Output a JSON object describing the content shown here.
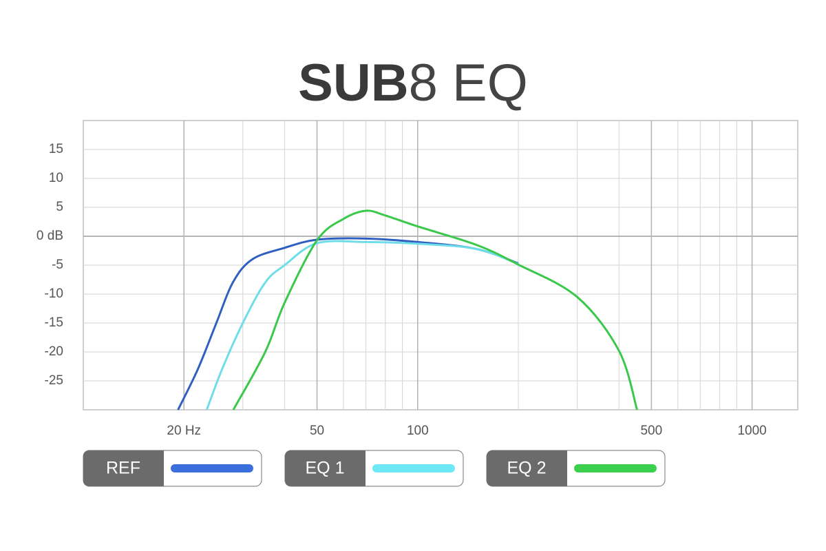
{
  "chart_data": {
    "type": "line",
    "title": [
      "SUB",
      "8 EQ"
    ],
    "xscale": "log",
    "xlim": [
      10,
      1370
    ],
    "ylim": [
      -30,
      20
    ],
    "xticks": [
      {
        "value": 20,
        "label": "20 Hz"
      },
      50,
      100,
      500,
      1000
    ],
    "xminor": [
      30,
      40,
      60,
      70,
      80,
      90,
      200,
      300,
      400,
      600,
      700,
      800,
      900
    ],
    "yticks": [
      15,
      10,
      5,
      {
        "value": 0,
        "label": "0 dB"
      },
      -5,
      -10,
      -15,
      -20,
      -25
    ],
    "grid": true,
    "series": [
      {
        "name": "REF",
        "color": "#2f5fc0",
        "legend_color": "#3a6fdc",
        "x": [
          19.2,
          22,
          25,
          28,
          32,
          40,
          50,
          70,
          100,
          150,
          200
        ],
        "values": [
          -30,
          -23,
          -15,
          -8,
          -4,
          -2,
          -0.6,
          -0.4,
          -1,
          -2.2,
          -4.7
        ]
      },
      {
        "name": "EQ 1",
        "color": "#6fdde8",
        "legend_color": "#6ee7f7",
        "x": [
          23.4,
          26,
          30,
          35,
          40,
          50,
          70,
          100,
          150,
          200
        ],
        "values": [
          -30,
          -23,
          -15,
          -8,
          -5,
          -1.2,
          -1,
          -1.3,
          -2.2,
          -4.8
        ]
      },
      {
        "name": "EQ 2",
        "color": "#3ac84a",
        "legend_color": "#3ccf4e",
        "x": [
          28.1,
          35,
          40,
          50,
          60,
          70,
          80,
          100,
          150,
          200,
          300,
          400,
          453
        ],
        "values": [
          -30,
          -20,
          -11.5,
          -0.7,
          3,
          4.4,
          3.6,
          1.7,
          -1.5,
          -4.9,
          -10.5,
          -19.8,
          -30
        ]
      }
    ]
  }
}
